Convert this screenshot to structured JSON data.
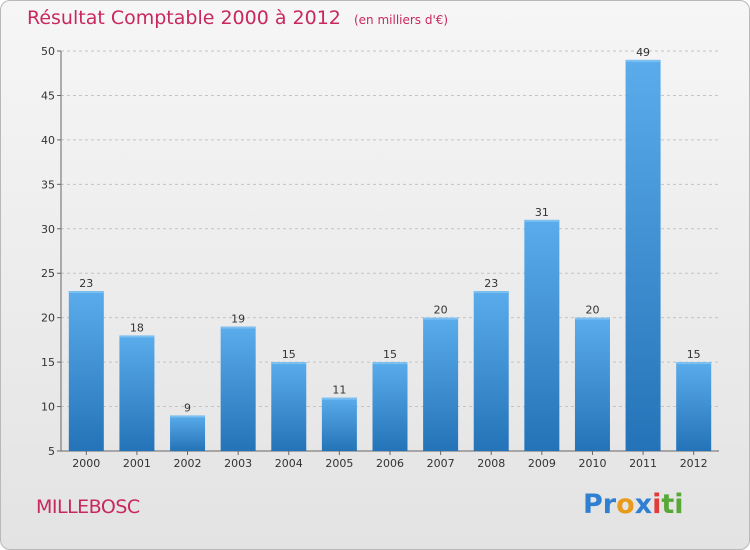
{
  "header": {
    "title": "Résultat Comptable 2000 à 2012",
    "subtitle": "(en milliers d'€)"
  },
  "footer": {
    "commune": "MILLEBOSC",
    "logo": {
      "letters": [
        "P",
        "r",
        "o",
        "x",
        "i",
        "t",
        "i"
      ],
      "colors": [
        "#2f80d1",
        "#2f80d1",
        "#e89a1a",
        "#2f80d1",
        "#e23b3b",
        "#58a838",
        "#58a838"
      ]
    }
  },
  "colors": {
    "bar": "#3b8fd8",
    "bar_light": "#5aaceb",
    "bar_dark": "#2473b8",
    "text_accent": "#c8285e"
  },
  "chart_data": {
    "type": "bar",
    "categories": [
      "2000",
      "2001",
      "2002",
      "2003",
      "2004",
      "2005",
      "2006",
      "2007",
      "2008",
      "2009",
      "2010",
      "2011",
      "2012"
    ],
    "values": [
      23,
      18,
      9,
      19,
      15,
      11,
      15,
      20,
      23,
      31,
      20,
      49,
      15
    ],
    "ylim": [
      5,
      50
    ],
    "yticks": [
      5,
      10,
      15,
      20,
      25,
      30,
      35,
      40,
      45,
      50
    ],
    "grid": true,
    "title": "Résultat Comptable 2000 à 2012",
    "xlabel": "",
    "ylabel": ""
  }
}
